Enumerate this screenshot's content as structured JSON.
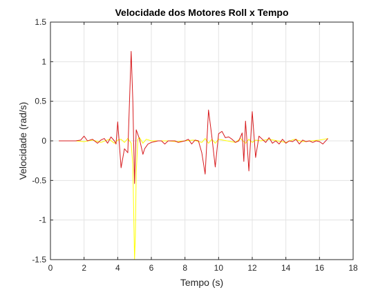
{
  "chart_data": {
    "type": "line",
    "title": "Velocidade dos Motores Roll x Tempo",
    "xlabel": "Tempo (s)",
    "ylabel": "Velocidade (rad/s)",
    "xlim": [
      0,
      18
    ],
    "ylim": [
      -1.5,
      1.5
    ],
    "xticks": [
      0,
      2,
      4,
      6,
      8,
      10,
      12,
      14,
      16,
      18
    ],
    "yticks": [
      -1.5,
      -1,
      -0.5,
      0,
      0.5,
      1,
      1.5
    ],
    "xtick_labels": [
      "0",
      "2",
      "4",
      "6",
      "8",
      "10",
      "12",
      "14",
      "16",
      "18"
    ],
    "ytick_labels": [
      "-1.5",
      "-1",
      "-0.5",
      "0",
      "0.5",
      "1",
      "1.5"
    ],
    "grid": true,
    "background": "#ffffff",
    "series": [
      {
        "color": "#ffff00",
        "x": [
          0.5,
          1.0,
          1.5,
          2.0,
          2.5,
          3.0,
          3.5,
          3.8,
          4.0,
          4.2,
          4.4,
          4.6,
          4.8,
          4.9,
          5.0,
          5.05,
          5.1,
          5.2,
          5.3,
          5.5,
          5.7,
          6.0,
          6.5,
          7.0,
          7.5,
          8.0,
          8.5,
          9.0,
          9.2,
          9.4,
          9.6,
          9.8,
          10.0,
          10.5,
          11.0,
          11.3,
          11.6,
          11.8,
          12.0,
          12.2,
          12.5,
          13.0,
          13.5,
          14.0,
          14.5,
          15.0,
          15.5,
          16.0,
          16.5
        ],
        "y": [
          0.0,
          0.0,
          0.0,
          -0.01,
          0.01,
          -0.02,
          0.02,
          -0.03,
          0.01,
          0.02,
          -0.02,
          0.03,
          -0.03,
          -0.3,
          -1.5,
          -1.2,
          -0.4,
          0.02,
          0.04,
          -0.03,
          0.02,
          0.0,
          0.0,
          0.0,
          -0.01,
          0.0,
          0.01,
          -0.02,
          0.03,
          -0.03,
          0.02,
          -0.03,
          0.02,
          0.0,
          -0.02,
          0.03,
          -0.03,
          0.02,
          -0.02,
          0.01,
          0.0,
          0.02,
          0.0,
          -0.02,
          0.02,
          -0.01,
          0.0,
          0.01,
          0.03
        ]
      },
      {
        "color": "#d7191c",
        "x": [
          0.5,
          1.0,
          1.5,
          1.8,
          2.0,
          2.2,
          2.5,
          2.8,
          3.0,
          3.2,
          3.4,
          3.6,
          3.8,
          3.9,
          4.0,
          4.2,
          4.4,
          4.6,
          4.8,
          4.9,
          5.0,
          5.1,
          5.3,
          5.5,
          5.6,
          5.8,
          6.0,
          6.2,
          6.4,
          6.6,
          6.8,
          7.0,
          7.2,
          7.4,
          7.6,
          7.8,
          8.0,
          8.2,
          8.4,
          8.6,
          8.8,
          9.0,
          9.2,
          9.4,
          9.6,
          9.8,
          10.0,
          10.2,
          10.4,
          10.6,
          10.8,
          11.0,
          11.2,
          11.4,
          11.5,
          11.6,
          11.7,
          11.8,
          12.0,
          12.2,
          12.4,
          12.6,
          12.8,
          13.0,
          13.2,
          13.4,
          13.6,
          13.8,
          14.0,
          14.2,
          14.4,
          14.6,
          14.8,
          15.0,
          15.2,
          15.4,
          15.6,
          15.8,
          16.0,
          16.2,
          16.5
        ],
        "y": [
          0.0,
          0.0,
          0.0,
          0.01,
          0.06,
          0.0,
          0.02,
          -0.03,
          0.01,
          0.03,
          -0.03,
          0.05,
          0.0,
          -0.04,
          0.24,
          -0.34,
          -0.1,
          -0.15,
          1.13,
          0.5,
          -0.54,
          0.14,
          0.02,
          -0.17,
          -0.1,
          -0.04,
          -0.02,
          -0.01,
          0.0,
          0.0,
          -0.04,
          0.0,
          0.0,
          0.0,
          -0.02,
          -0.01,
          0.0,
          0.02,
          -0.04,
          0.01,
          0.0,
          -0.15,
          -0.42,
          0.39,
          0.05,
          -0.33,
          0.09,
          0.12,
          0.04,
          0.05,
          0.02,
          -0.02,
          0.0,
          0.1,
          -0.26,
          0.25,
          -0.05,
          -0.38,
          0.37,
          -0.21,
          0.06,
          0.02,
          -0.02,
          0.04,
          -0.03,
          0.0,
          -0.04,
          0.02,
          -0.03,
          0.0,
          -0.01,
          0.02,
          -0.04,
          0.01,
          -0.01,
          0.0,
          -0.02,
          0.0,
          -0.01,
          -0.04,
          0.03
        ]
      }
    ]
  }
}
